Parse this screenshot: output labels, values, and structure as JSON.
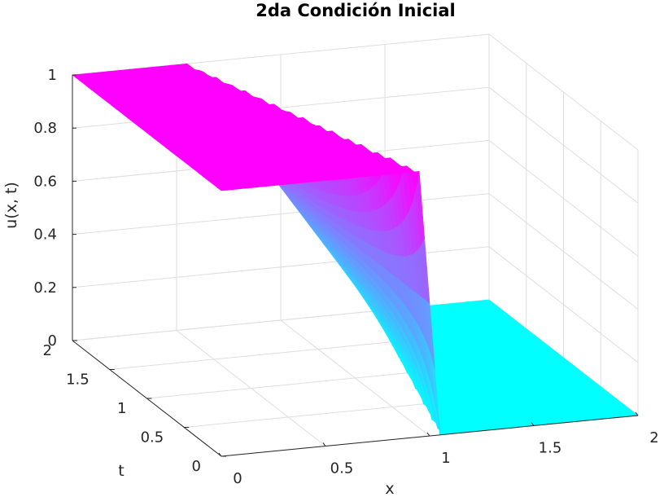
{
  "chart_data": {
    "type": "surface",
    "title": "2da Condición Inicial",
    "xlabel": "x",
    "ylabel": "t",
    "zlabel": "u(x, t)",
    "xlim": [
      0,
      2
    ],
    "ylim": [
      0,
      2
    ],
    "zlim": [
      0,
      1
    ],
    "grid": true,
    "colormap": "cool",
    "color_low": "#00ffff",
    "color_high": "#ff00ff",
    "x_ticks": [
      "0",
      "0.5",
      "1",
      "1.5",
      "2"
    ],
    "y_ticks": [
      "0",
      "0.5",
      "1",
      "1.5",
      "2"
    ],
    "z_ticks": [
      "0",
      "0.2",
      "0.4",
      "0.6",
      "0.8",
      "1"
    ],
    "x_tick_values": [
      0,
      0.5,
      1,
      1.5,
      2
    ],
    "y_tick_values": [
      0,
      0.5,
      1,
      1.5,
      2
    ],
    "z_tick_values": [
      0,
      0.2,
      0.4,
      0.6,
      0.8,
      1
    ],
    "initial_condition": "u(x,0) = 1 for x <= 1, 0 for x > 1 (ramp front widening as t increases)",
    "surface_samples": [
      {
        "t": 0.0,
        "x": [
          0,
          0.5,
          0.95,
          1.0,
          1.05,
          1.5,
          2
        ],
        "u": [
          1,
          1,
          1,
          0.5,
          0,
          0,
          0
        ]
      },
      {
        "t": 0.5,
        "x": [
          0,
          0.5,
          0.8,
          1.0,
          1.2,
          1.5,
          2
        ],
        "u": [
          1,
          1,
          0.85,
          0.5,
          0.15,
          0,
          0
        ]
      },
      {
        "t": 1.0,
        "x": [
          0,
          0.5,
          0.7,
          1.0,
          1.3,
          1.5,
          2
        ],
        "u": [
          1,
          1,
          0.8,
          0.5,
          0.2,
          0.05,
          0
        ]
      },
      {
        "t": 1.5,
        "x": [
          0,
          0.4,
          0.7,
          1.0,
          1.3,
          1.6,
          2
        ],
        "u": [
          1,
          1,
          0.75,
          0.5,
          0.25,
          0.05,
          0
        ]
      },
      {
        "t": 2.0,
        "x": [
          0,
          0.4,
          0.7,
          1.0,
          1.3,
          1.6,
          2
        ],
        "u": [
          1,
          0.98,
          0.75,
          0.5,
          0.25,
          0.08,
          0
        ]
      }
    ]
  }
}
